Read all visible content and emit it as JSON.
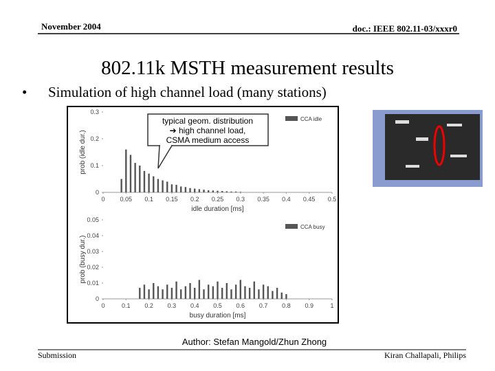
{
  "header": {
    "date": "November 2004",
    "doc": "doc.: IEEE 802.11-03/xxxr0"
  },
  "title": "802.11k MSTH measurement results",
  "bullet": "Simulation of high channel load (many stations)",
  "chart_data": [
    {
      "type": "bar",
      "xlabel": "idle duration [ms]",
      "ylabel": "prob (idle dur.)",
      "annotation": [
        "typical geom. distribution",
        "➔ high channel load,",
        "CSMA medium access"
      ],
      "x": [
        0.04,
        0.05,
        0.06,
        0.07,
        0.08,
        0.09,
        0.1,
        0.11,
        0.12,
        0.13,
        0.14,
        0.15,
        0.16,
        0.17,
        0.18,
        0.19,
        0.2,
        0.21,
        0.22,
        0.23,
        0.24,
        0.25,
        0.26,
        0.27,
        0.28,
        0.29,
        0.3
      ],
      "series": [
        {
          "name": "CCA idle",
          "color": "#555555",
          "values": [
            0.05,
            0.16,
            0.14,
            0.11,
            0.1,
            0.08,
            0.07,
            0.06,
            0.05,
            0.045,
            0.04,
            0.03,
            0.028,
            0.022,
            0.02,
            0.016,
            0.014,
            0.012,
            0.01,
            0.008,
            0.007,
            0.006,
            0.005,
            0.004,
            0.003,
            0.003,
            0.002
          ]
        }
      ],
      "xlim": [
        0,
        0.5
      ],
      "xticks": [
        0,
        0.05,
        0.1,
        0.15,
        0.2,
        0.25,
        0.3,
        0.35,
        0.4,
        0.45,
        0.5
      ],
      "ylim": [
        0,
        0.3
      ],
      "yticks": [
        0,
        0.1,
        0.2,
        0.3
      ]
    },
    {
      "type": "bar",
      "xlabel": "busy duration [ms]",
      "ylabel": "prob (busy dur.)",
      "x": [
        0.16,
        0.18,
        0.2,
        0.22,
        0.24,
        0.26,
        0.28,
        0.3,
        0.32,
        0.34,
        0.36,
        0.38,
        0.4,
        0.42,
        0.44,
        0.46,
        0.48,
        0.5,
        0.52,
        0.54,
        0.56,
        0.58,
        0.6,
        0.62,
        0.64,
        0.66,
        0.68,
        0.7,
        0.72,
        0.74,
        0.76,
        0.78,
        0.8
      ],
      "series": [
        {
          "name": "CCA busy",
          "color": "#555555",
          "values": [
            0.007,
            0.009,
            0.006,
            0.01,
            0.008,
            0.006,
            0.009,
            0.007,
            0.011,
            0.006,
            0.008,
            0.01,
            0.007,
            0.012,
            0.006,
            0.009,
            0.008,
            0.011,
            0.007,
            0.01,
            0.006,
            0.009,
            0.012,
            0.008,
            0.007,
            0.011,
            0.006,
            0.009,
            0.008,
            0.005,
            0.007,
            0.004,
            0.003
          ]
        }
      ],
      "xlim": [
        0,
        1
      ],
      "xticks": [
        0,
        0.1,
        0.2,
        0.3,
        0.4,
        0.5,
        0.6,
        0.7,
        0.8,
        0.9,
        1
      ],
      "ylim": [
        0,
        0.05
      ],
      "yticks": [
        0,
        0.01,
        0.02,
        0.03,
        0.04,
        0.05
      ]
    }
  ],
  "author": "Author: Stefan Mangold/Zhun Zhong",
  "footer": {
    "left": "Submission",
    "right": "Kiran Challapali, Philips"
  }
}
